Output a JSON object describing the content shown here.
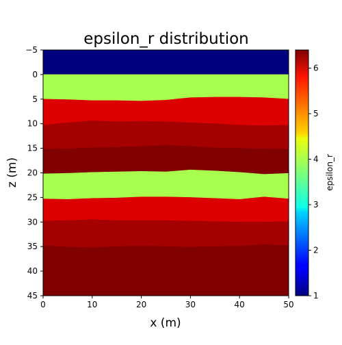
{
  "chart_data": {
    "type": "heatmap",
    "title": "epsilon_r distribution",
    "xlabel": "x (m)",
    "ylabel": "z (m)",
    "colorbar_label": "epsilon_r",
    "xlim": [
      0,
      50
    ],
    "ylim": [
      -5,
      45
    ],
    "y_inverted": true,
    "x_ticks": [
      "0",
      "10",
      "20",
      "30",
      "40",
      "50"
    ],
    "y_ticks": [
      "−5",
      "0",
      "5",
      "10",
      "15",
      "20",
      "25",
      "30",
      "35",
      "40",
      "45"
    ],
    "x_tick_values": [
      0,
      10,
      20,
      30,
      40,
      50
    ],
    "y_tick_values": [
      -5,
      0,
      5,
      10,
      15,
      20,
      25,
      30,
      35,
      40,
      45
    ],
    "colorbar_range": [
      1,
      6.4
    ],
    "colorbar_ticks": [
      "1",
      "2",
      "3",
      "4",
      "5",
      "6"
    ],
    "colorbar_tick_values": [
      1,
      2,
      3,
      4,
      5,
      6
    ],
    "colormap": "jet",
    "x_samples": [
      0,
      5,
      10,
      15,
      20,
      25,
      30,
      35,
      40,
      45,
      50
    ],
    "layers": [
      {
        "epsilon_r": 1.0,
        "color": "#00007f",
        "top": [
          -5,
          -5,
          -5,
          -5,
          -5,
          -5,
          -5,
          -5,
          -5,
          -5,
          -5
        ],
        "bottom": [
          0,
          0,
          0,
          0,
          0,
          0,
          0,
          0,
          0,
          0,
          0
        ]
      },
      {
        "epsilon_r": 4.0,
        "color": "#a8ff4d",
        "top": [
          0,
          0,
          0,
          0,
          0,
          0,
          0,
          0,
          0,
          0,
          0
        ],
        "bottom": [
          5,
          5.1,
          5.3,
          5.3,
          5.4,
          5.2,
          4.7,
          4.6,
          4.6,
          4.7,
          5.0
        ]
      },
      {
        "epsilon_r": 6.0,
        "color": "#dd0000",
        "top": [
          5,
          5.1,
          5.3,
          5.3,
          5.4,
          5.2,
          4.7,
          4.6,
          4.6,
          4.7,
          5.0
        ],
        "bottom": [
          10.3,
          9.8,
          9.4,
          9.6,
          9.5,
          9.6,
          9.8,
          10.0,
          10.3,
          10.4,
          10.3
        ]
      },
      {
        "epsilon_r": 6.2,
        "color": "#a50000",
        "top": [
          10.3,
          9.8,
          9.4,
          9.6,
          9.5,
          9.6,
          9.8,
          10.0,
          10.3,
          10.4,
          10.3
        ],
        "bottom": [
          15.2,
          15.1,
          14.9,
          14.8,
          14.6,
          14.4,
          14.6,
          14.9,
          15.0,
          15.1,
          15.2
        ]
      },
      {
        "epsilon_r": 6.4,
        "color": "#800000",
        "top": [
          15.2,
          15.1,
          14.9,
          14.8,
          14.6,
          14.4,
          14.6,
          14.9,
          15.0,
          15.1,
          15.2
        ],
        "bottom": [
          20.2,
          20.1,
          19.9,
          19.8,
          19.7,
          19.8,
          19.4,
          19.6,
          19.9,
          20.3,
          20.1
        ]
      },
      {
        "epsilon_r": 4.0,
        "color": "#a8ff4d",
        "top": [
          20.2,
          20.1,
          19.9,
          19.8,
          19.7,
          19.8,
          19.4,
          19.6,
          19.9,
          20.3,
          20.1
        ],
        "bottom": [
          25.3,
          25.4,
          25.2,
          25.1,
          24.9,
          24.9,
          25.0,
          25.2,
          25.4,
          24.9,
          25.3
        ]
      },
      {
        "epsilon_r": 6.0,
        "color": "#dd0000",
        "top": [
          25.3,
          25.4,
          25.2,
          25.1,
          24.9,
          24.9,
          25.0,
          25.2,
          25.4,
          24.9,
          25.3
        ],
        "bottom": [
          29.8,
          29.7,
          29.5,
          29.7,
          29.7,
          29.7,
          29.8,
          29.9,
          30.0,
          30.0,
          29.9
        ]
      },
      {
        "epsilon_r": 6.2,
        "color": "#a50000",
        "top": [
          29.8,
          29.7,
          29.5,
          29.7,
          29.7,
          29.7,
          29.8,
          29.9,
          30.0,
          30.0,
          29.9
        ],
        "bottom": [
          34.8,
          35.1,
          35.2,
          35.0,
          34.9,
          35.0,
          35.1,
          35.0,
          34.9,
          34.6,
          34.8
        ]
      },
      {
        "epsilon_r": 6.4,
        "color": "#800000",
        "top": [
          34.8,
          35.1,
          35.2,
          35.0,
          34.9,
          35.0,
          35.1,
          35.0,
          34.9,
          34.6,
          34.8
        ],
        "bottom": [
          45,
          45,
          45,
          45,
          45,
          45,
          45,
          45,
          45,
          45,
          45
        ]
      }
    ]
  }
}
